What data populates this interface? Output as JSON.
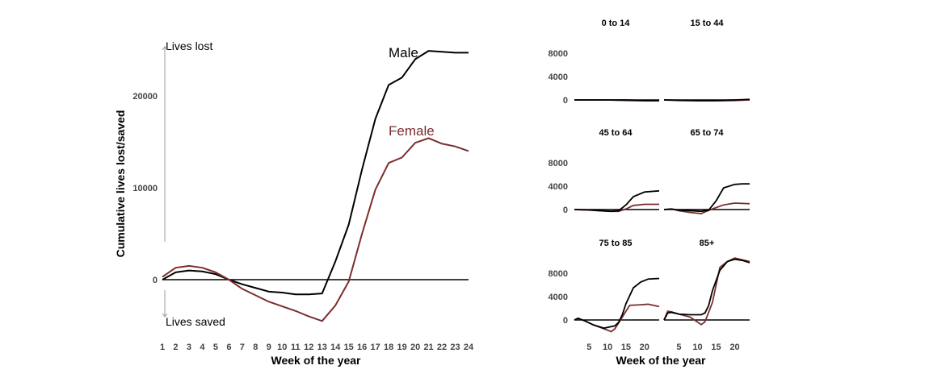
{
  "colors": {
    "male": "#000000",
    "female": "#7b2d2d",
    "arrow": "#999999"
  },
  "chart_data": [
    {
      "type": "line",
      "xlabel": "Week of the year",
      "ylabel": "Cumulative lives lost/saved",
      "x": [
        1,
        2,
        3,
        4,
        5,
        6,
        7,
        8,
        9,
        10,
        11,
        12,
        13,
        14,
        15,
        16,
        17,
        18,
        19,
        20,
        21,
        22,
        23,
        24
      ],
      "ylim": [
        -4800,
        25000
      ],
      "yticks": [
        0,
        10000,
        20000
      ],
      "annotations": {
        "top": "Lives lost",
        "bottom": "Lives saved"
      },
      "series": [
        {
          "name": "Male",
          "values": [
            0,
            800,
            1000,
            900,
            600,
            0,
            -500,
            -900,
            -1300,
            -1400,
            -1600,
            -1600,
            -1500,
            2000,
            6000,
            12000,
            17500,
            21200,
            22000,
            24000,
            24900,
            24800,
            24700,
            24700
          ]
        },
        {
          "name": "Female",
          "values": [
            300,
            1300,
            1500,
            1300,
            800,
            0,
            -1000,
            -1700,
            -2400,
            -2900,
            -3400,
            -4000,
            -4500,
            -2800,
            -200,
            5000,
            9800,
            12700,
            13300,
            14900,
            15400,
            14800,
            14500,
            14000
          ]
        }
      ]
    },
    {
      "type": "line",
      "xlabel": "Week of the year",
      "xticks": [
        5,
        10,
        15,
        20
      ],
      "yticks": [
        0,
        4000,
        8000
      ],
      "ylim": [
        0,
        10000
      ],
      "panels": [
        {
          "title": "0 to 14",
          "male": [
            [
              1,
              0
            ],
            [
              5,
              0
            ],
            [
              10,
              0
            ],
            [
              15,
              0
            ],
            [
              20,
              -100
            ],
            [
              24,
              -100
            ]
          ],
          "female": [
            [
              1,
              0
            ],
            [
              10,
              0
            ],
            [
              15,
              -100
            ],
            [
              20,
              -150
            ],
            [
              24,
              -150
            ]
          ]
        },
        {
          "title": "15 to 44",
          "male": [
            [
              1,
              0
            ],
            [
              5,
              -50
            ],
            [
              10,
              -100
            ],
            [
              15,
              -100
            ],
            [
              20,
              0
            ],
            [
              24,
              100
            ]
          ],
          "female": [
            [
              1,
              0
            ],
            [
              5,
              -100
            ],
            [
              10,
              -150
            ],
            [
              15,
              -150
            ],
            [
              20,
              -100
            ],
            [
              24,
              0
            ]
          ]
        },
        {
          "title": "45 to 64",
          "male": [
            [
              1,
              0
            ],
            [
              5,
              -50
            ],
            [
              8,
              -200
            ],
            [
              11,
              -300
            ],
            [
              13,
              -200
            ],
            [
              15,
              800
            ],
            [
              17,
              2200
            ],
            [
              20,
              3000
            ],
            [
              24,
              3200
            ]
          ],
          "female": [
            [
              1,
              0
            ],
            [
              5,
              -100
            ],
            [
              8,
              -200
            ],
            [
              11,
              -300
            ],
            [
              13,
              -300
            ],
            [
              15,
              100
            ],
            [
              17,
              700
            ],
            [
              20,
              900
            ],
            [
              24,
              900
            ]
          ]
        },
        {
          "title": "65 to 74",
          "male": [
            [
              1,
              0
            ],
            [
              3,
              100
            ],
            [
              5,
              -100
            ],
            [
              8,
              -200
            ],
            [
              11,
              -300
            ],
            [
              13,
              -100
            ],
            [
              15,
              1500
            ],
            [
              17,
              3700
            ],
            [
              20,
              4300
            ],
            [
              22,
              4400
            ],
            [
              24,
              4400
            ]
          ],
          "female": [
            [
              1,
              0
            ],
            [
              3,
              100
            ],
            [
              5,
              -200
            ],
            [
              8,
              -500
            ],
            [
              11,
              -700
            ],
            [
              12,
              -400
            ],
            [
              14,
              100
            ],
            [
              17,
              800
            ],
            [
              20,
              1100
            ],
            [
              24,
              1000
            ]
          ]
        },
        {
          "title": "75 to 85",
          "male": [
            [
              1,
              0
            ],
            [
              2,
              300
            ],
            [
              4,
              -200
            ],
            [
              6,
              -800
            ],
            [
              9,
              -1400
            ],
            [
              12,
              -1000
            ],
            [
              13,
              -400
            ],
            [
              14,
              900
            ],
            [
              15,
              2800
            ],
            [
              17,
              5500
            ],
            [
              19,
              6500
            ],
            [
              21,
              7000
            ],
            [
              24,
              7100
            ]
          ],
          "female": [
            [
              1,
              0
            ],
            [
              2,
              300
            ],
            [
              4,
              -200
            ],
            [
              6,
              -800
            ],
            [
              9,
              -1500
            ],
            [
              11,
              -2000
            ],
            [
              12,
              -1500
            ],
            [
              14,
              500
            ],
            [
              16,
              2500
            ],
            [
              19,
              2600
            ],
            [
              21,
              2700
            ],
            [
              24,
              2300
            ]
          ]
        },
        {
          "title": "85+",
          "male": [
            [
              1,
              0
            ],
            [
              2,
              1200
            ],
            [
              3,
              1300
            ],
            [
              5,
              1000
            ],
            [
              8,
              900
            ],
            [
              11,
              900
            ],
            [
              12,
              1200
            ],
            [
              13,
              2500
            ],
            [
              14,
              5000
            ],
            [
              16,
              8500
            ],
            [
              18,
              10000
            ],
            [
              20,
              10400
            ],
            [
              22,
              10200
            ],
            [
              24,
              9800
            ]
          ],
          "female": [
            [
              1,
              0
            ],
            [
              2,
              1500
            ],
            [
              3,
              1400
            ],
            [
              5,
              1000
            ],
            [
              8,
              500
            ],
            [
              11,
              -800
            ],
            [
              12,
              -300
            ],
            [
              14,
              3000
            ],
            [
              16,
              9000
            ],
            [
              18,
              10000
            ],
            [
              20,
              10600
            ],
            [
              22,
              10300
            ],
            [
              24,
              10000
            ]
          ]
        }
      ]
    }
  ]
}
